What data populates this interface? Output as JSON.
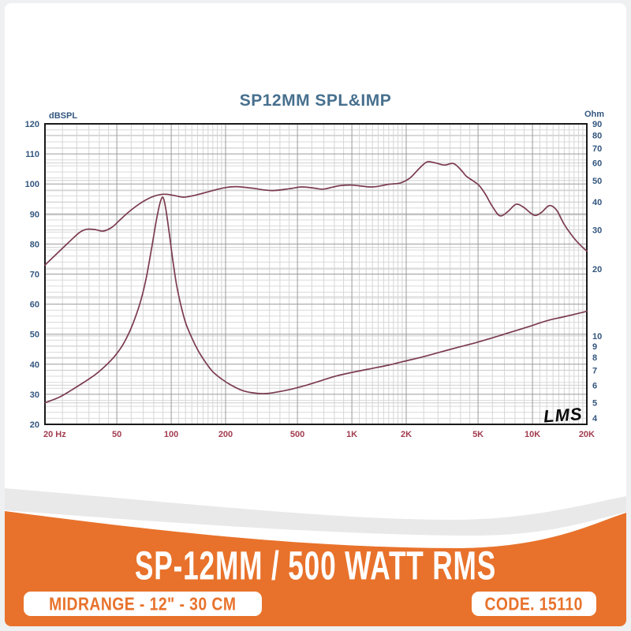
{
  "page": {
    "background": "#eef0f1",
    "card_background": "#ffffff"
  },
  "chart": {
    "title": "SP12MM SPL&IMP",
    "left_axis_unit": "dBSPL",
    "right_axis_unit": "Ohm",
    "watermark": "LMS",
    "colors": {
      "title": "#47708e",
      "axis_label_blue": "#33567e",
      "freq_label_red": "#a23c4f",
      "grid_major": "#9b9b9b",
      "grid_minor": "#d6d6d6",
      "border": "#1a1a1a",
      "curve": "#7b3b4e"
    }
  },
  "chart_data": {
    "type": "line",
    "title": "SP12MM SPL&IMP",
    "x_axis": {
      "label": "Hz",
      "scale": "log",
      "min": 20,
      "max": 20000,
      "tick_values": [
        20,
        50,
        100,
        200,
        500,
        1000,
        2000,
        5000,
        10000,
        20000
      ],
      "tick_labels": [
        "20 Hz",
        "50",
        "100",
        "200",
        "500",
        "1K",
        "2K",
        "5K",
        "10K",
        "20K"
      ]
    },
    "y_left": {
      "label": "dBSPL",
      "scale": "linear",
      "min": 20,
      "max": 120,
      "ticks": [
        120,
        110,
        100,
        90,
        80,
        70,
        60,
        50,
        40,
        30,
        20
      ]
    },
    "y_right": {
      "label": "Ohm",
      "scale": "log",
      "min": 4,
      "max": 90,
      "ticks": [
        90,
        80,
        70,
        60,
        50,
        40,
        30,
        20,
        10,
        9,
        8,
        7,
        6,
        5,
        4
      ]
    },
    "grid": {
      "visible": true,
      "minor_db_step": 2,
      "ohm_minor_lines": [
        5,
        6,
        7,
        8,
        9,
        10,
        15,
        20,
        25,
        30,
        35,
        40,
        45,
        50,
        60,
        70,
        80
      ]
    },
    "series": [
      {
        "name": "SPL",
        "axis": "left",
        "unit": "dBSPL",
        "points": [
          [
            20,
            73
          ],
          [
            23,
            76.5
          ],
          [
            27,
            80.5
          ],
          [
            31,
            83.8
          ],
          [
            34,
            84.9
          ],
          [
            38,
            84.8
          ],
          [
            42,
            84.3
          ],
          [
            47,
            85.6
          ],
          [
            52,
            88
          ],
          [
            58,
            90.6
          ],
          [
            65,
            92.9
          ],
          [
            73,
            94.8
          ],
          [
            82,
            96.1
          ],
          [
            92,
            96.6
          ],
          [
            103,
            96.2
          ],
          [
            116,
            95.6
          ],
          [
            130,
            96
          ],
          [
            150,
            96.9
          ],
          [
            175,
            98
          ],
          [
            200,
            98.8
          ],
          [
            230,
            99.1
          ],
          [
            280,
            98.6
          ],
          [
            360,
            97.8
          ],
          [
            450,
            98.4
          ],
          [
            530,
            99
          ],
          [
            620,
            98.6
          ],
          [
            700,
            98.3
          ],
          [
            850,
            99.4
          ],
          [
            1000,
            99.6
          ],
          [
            1300,
            99
          ],
          [
            1600,
            99.9
          ],
          [
            1850,
            100.3
          ],
          [
            2100,
            102
          ],
          [
            2350,
            105
          ],
          [
            2600,
            107.3
          ],
          [
            2900,
            107
          ],
          [
            3250,
            106.3
          ],
          [
            3650,
            106.8
          ],
          [
            4000,
            104.8
          ],
          [
            4300,
            102.6
          ],
          [
            4700,
            101
          ],
          [
            5100,
            99.3
          ],
          [
            5500,
            96.5
          ],
          [
            6000,
            92.5
          ],
          [
            6600,
            89.4
          ],
          [
            7300,
            90.8
          ],
          [
            8100,
            93.2
          ],
          [
            8900,
            92.3
          ],
          [
            10200,
            89.6
          ],
          [
            11200,
            90.5
          ],
          [
            12400,
            92.8
          ],
          [
            13600,
            91.3
          ],
          [
            15000,
            86.5
          ],
          [
            16800,
            82.3
          ],
          [
            18300,
            79.8
          ],
          [
            20000,
            77.6
          ]
        ]
      },
      {
        "name": "Impedance",
        "axis": "right",
        "unit": "Ohm",
        "points": [
          [
            20,
            5
          ],
          [
            24,
            5.3
          ],
          [
            28,
            5.7
          ],
          [
            33,
            6.2
          ],
          [
            38,
            6.7
          ],
          [
            43,
            7.3
          ],
          [
            48,
            8
          ],
          [
            53,
            8.9
          ],
          [
            58,
            10.2
          ],
          [
            63,
            12
          ],
          [
            68,
            14.5
          ],
          [
            73,
            18.5
          ],
          [
            78,
            25
          ],
          [
            83,
            33.5
          ],
          [
            87,
            40
          ],
          [
            90,
            42
          ],
          [
            93,
            38
          ],
          [
            97,
            30
          ],
          [
            102,
            22
          ],
          [
            107,
            17
          ],
          [
            113,
            13.8
          ],
          [
            120,
            11.5
          ],
          [
            130,
            9.8
          ],
          [
            142,
            8.5
          ],
          [
            155,
            7.6
          ],
          [
            170,
            6.9
          ],
          [
            190,
            6.4
          ],
          [
            215,
            6
          ],
          [
            245,
            5.7
          ],
          [
            280,
            5.55
          ],
          [
            330,
            5.5
          ],
          [
            390,
            5.6
          ],
          [
            460,
            5.75
          ],
          [
            560,
            6
          ],
          [
            680,
            6.3
          ],
          [
            820,
            6.6
          ],
          [
            1000,
            6.85
          ],
          [
            1250,
            7.1
          ],
          [
            1550,
            7.35
          ],
          [
            1900,
            7.65
          ],
          [
            2400,
            8
          ],
          [
            3000,
            8.4
          ],
          [
            3800,
            8.85
          ],
          [
            4800,
            9.3
          ],
          [
            6000,
            9.8
          ],
          [
            7600,
            10.4
          ],
          [
            9500,
            11
          ],
          [
            12000,
            11.7
          ],
          [
            15000,
            12.2
          ],
          [
            20000,
            12.9
          ]
        ]
      }
    ],
    "line_color": "#7b3b4e",
    "legend": "none"
  },
  "footer": {
    "banner": "SP-12MM / 500 WATT RMS",
    "left_badge": "MIDRANGE - 12\" - 30 CM",
    "right_badge": "CODE. 15110",
    "orange": "#e8722b",
    "badge_background": "#ffffff",
    "banner_text_color": "#ffffff"
  }
}
